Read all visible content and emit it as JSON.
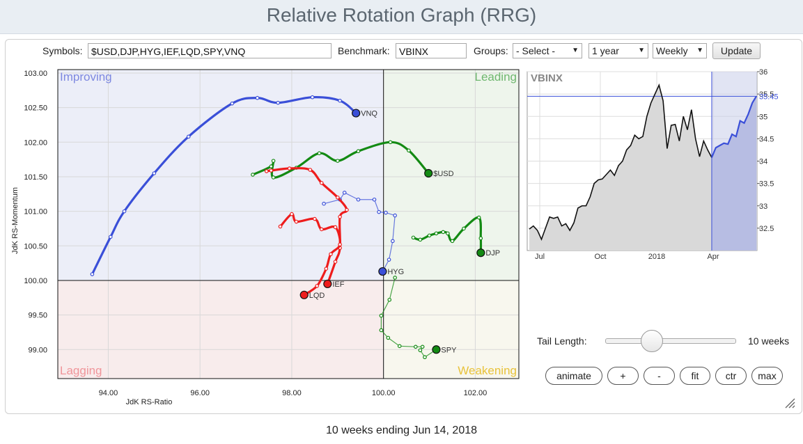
{
  "title": "Relative Rotation Graph (RRG)",
  "controls": {
    "symbols_label": "Symbols:",
    "symbols_value": "$USD,DJP,HYG,IEF,LQD,SPY,VNQ",
    "benchmark_label": "Benchmark:",
    "benchmark_value": "VBINX",
    "groups_label": "Groups:",
    "groups_value": "- Select -",
    "period_value": "1 year",
    "frequency_value": "Weekly",
    "update_label": "Update"
  },
  "bottom_controls": {
    "tail_label": "Tail Length:",
    "tail_value": "10 weeks",
    "tail_fraction": 0.35,
    "buttons": [
      "animate",
      "+",
      "-",
      "fit",
      "ctr",
      "max"
    ]
  },
  "footer": "10 weeks ending Jun 14, 2018",
  "colors": {
    "improving": "#eceef8",
    "leading": "#eef5ec",
    "weakening": "#f8f7ee",
    "lagging": "#f8ecec",
    "blue": "#3a4fd8",
    "green": "#138a13",
    "red": "#ee1c1c"
  },
  "chart_data": [
    {
      "type": "scatter",
      "xlabel": "JdK RS-Ratio",
      "ylabel": "JdK RS-Momentum",
      "xlim": [
        92.9,
        102.95
      ],
      "ylim": [
        98.58,
        103.05
      ],
      "x_ticks": [
        "94.00",
        "96.00",
        "98.00",
        "100.00",
        "102.00"
      ],
      "y_ticks": [
        "99.00",
        "99.50",
        "100.00",
        "100.50",
        "101.00",
        "101.50",
        "102.00",
        "102.50",
        "103.00"
      ],
      "quadrants": [
        "Improving",
        "Leading",
        "Weakening",
        "Lagging"
      ],
      "series": [
        {
          "name": "VNQ",
          "color": "#3a4fd8",
          "thick": true,
          "points": [
            [
              93.65,
              100.09
            ],
            [
              94.05,
              100.63
            ],
            [
              94.35,
              101.0
            ],
            [
              95.0,
              101.55
            ],
            [
              95.75,
              102.08
            ],
            [
              96.7,
              102.56
            ],
            [
              97.25,
              102.64
            ],
            [
              97.7,
              102.57
            ],
            [
              98.45,
              102.65
            ],
            [
              99.05,
              102.6
            ],
            [
              99.4,
              102.42
            ]
          ]
        },
        {
          "name": "$USD",
          "color": "#138a13",
          "thick": true,
          "points": [
            [
              97.15,
              101.53
            ],
            [
              97.55,
              101.65
            ],
            [
              97.6,
              101.73
            ],
            [
              97.6,
              101.49
            ],
            [
              98.1,
              101.63
            ],
            [
              98.6,
              101.84
            ],
            [
              99.0,
              101.73
            ],
            [
              99.45,
              101.87
            ],
            [
              100.15,
              102.0
            ],
            [
              100.55,
              101.88
            ],
            [
              100.98,
              101.55
            ]
          ]
        },
        {
          "name": "DJP",
          "color": "#138a13",
          "thick": true,
          "points": [
            [
              100.65,
              100.62
            ],
            [
              100.8,
              100.59
            ],
            [
              101.0,
              100.65
            ],
            [
              101.15,
              100.68
            ],
            [
              101.3,
              100.7
            ],
            [
              101.4,
              100.68
            ],
            [
              101.5,
              100.57
            ],
            [
              101.75,
              100.75
            ],
            [
              102.08,
              100.91
            ],
            [
              102.12,
              100.61
            ],
            [
              102.12,
              100.4
            ]
          ]
        },
        {
          "name": "HYG",
          "color": "#3a4fd8",
          "thick": false,
          "points": [
            [
              98.7,
              101.11
            ],
            [
              99.05,
              101.17
            ],
            [
              99.15,
              101.27
            ],
            [
              99.45,
              101.17
            ],
            [
              99.8,
              101.17
            ],
            [
              99.9,
              100.99
            ],
            [
              100.05,
              100.98
            ],
            [
              100.25,
              100.94
            ],
            [
              100.2,
              100.57
            ],
            [
              100.12,
              100.3
            ],
            [
              99.98,
              100.13
            ]
          ]
        },
        {
          "name": "SPY",
          "color": "#138a13",
          "thick": false,
          "points": [
            [
              100.25,
              100.04
            ],
            [
              100.13,
              99.72
            ],
            [
              99.95,
              99.49
            ],
            [
              99.95,
              99.28
            ],
            [
              100.1,
              99.17
            ],
            [
              100.35,
              99.05
            ],
            [
              100.7,
              99.04
            ],
            [
              100.85,
              99.04
            ],
            [
              100.8,
              98.99
            ],
            [
              100.9,
              98.89
            ],
            [
              101.15,
              99.0
            ]
          ]
        },
        {
          "name": "IEF",
          "color": "#ee1c1c",
          "thick": true,
          "points": [
            [
              97.45,
              101.58
            ],
            [
              97.55,
              101.59
            ],
            [
              97.95,
              101.62
            ],
            [
              98.4,
              101.6
            ],
            [
              98.65,
              101.41
            ],
            [
              99.0,
              101.2
            ],
            [
              99.2,
              101.02
            ],
            [
              99.05,
              100.92
            ],
            [
              99.05,
              100.47
            ],
            [
              98.95,
              100.27
            ],
            [
              98.78,
              99.95
            ]
          ]
        },
        {
          "name": "LQD",
          "color": "#ee1c1c",
          "thick": true,
          "points": [
            [
              97.75,
              100.78
            ],
            [
              98.0,
              100.96
            ],
            [
              98.1,
              100.85
            ],
            [
              98.5,
              100.89
            ],
            [
              98.65,
              100.74
            ],
            [
              98.95,
              100.77
            ],
            [
              99.05,
              100.52
            ],
            [
              98.85,
              100.38
            ],
            [
              98.75,
              100.17
            ],
            [
              98.55,
              99.92
            ],
            [
              98.27,
              99.79
            ]
          ]
        }
      ]
    },
    {
      "type": "line",
      "title": "VBINX",
      "x_ticks": [
        "Jul",
        "Oct",
        "2018",
        "Apr"
      ],
      "y_ticks": [
        "32.5",
        "33",
        "33.5",
        "34",
        "34.5",
        "35",
        "35.5",
        "36"
      ],
      "ylim": [
        32.0,
        36.0
      ],
      "last_value": "35.45",
      "tail_start_index": 45,
      "values": [
        32.48,
        32.55,
        32.45,
        32.25,
        32.5,
        32.75,
        32.72,
        32.75,
        32.55,
        32.6,
        32.45,
        32.62,
        32.95,
        33.0,
        33.0,
        33.2,
        33.5,
        33.58,
        33.6,
        33.7,
        33.8,
        33.68,
        33.9,
        34.0,
        34.25,
        34.35,
        34.58,
        34.5,
        34.55,
        35.0,
        35.3,
        35.5,
        35.7,
        35.35,
        34.28,
        34.8,
        34.82,
        34.45,
        35.0,
        34.7,
        35.15,
        34.5,
        34.1,
        34.45,
        34.25,
        34.08,
        34.3,
        34.35,
        34.4,
        34.38,
        34.6,
        34.55,
        34.9,
        34.85,
        35.05,
        35.3,
        35.45
      ]
    }
  ]
}
